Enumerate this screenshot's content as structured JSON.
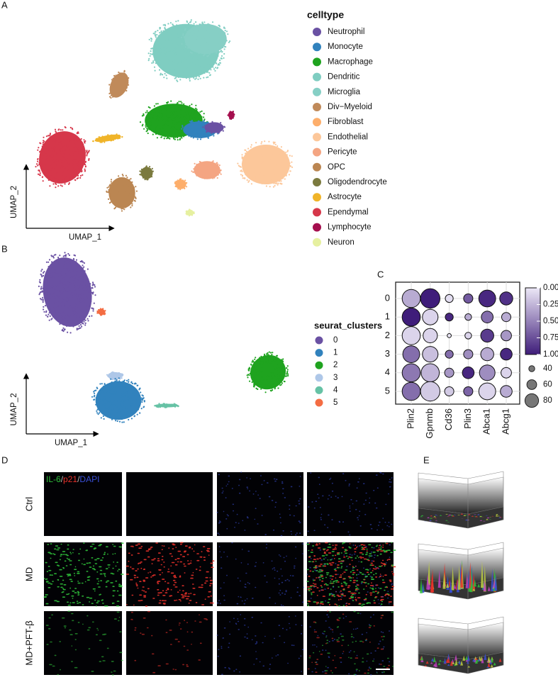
{
  "panel_labels": [
    "A",
    "B",
    "C",
    "D",
    "E"
  ],
  "umap_a": {
    "legend_title": "celltype",
    "x_label": "UMAP_1",
    "y_label": "UMAP_2",
    "cell_types": [
      {
        "name": "Neutrophil",
        "color": "#6a51a3"
      },
      {
        "name": "Monocyte",
        "color": "#3182bd"
      },
      {
        "name": "Macrophage",
        "color": "#1fa31f"
      },
      {
        "name": "Dendritic",
        "color": "#7fcdc1"
      },
      {
        "name": "Microglia",
        "color": "#86cfc5"
      },
      {
        "name": "Div−Myeloid",
        "color": "#c08a5a"
      },
      {
        "name": "Fibroblast",
        "color": "#fdae6b"
      },
      {
        "name": "Endothelial",
        "color": "#fcc79a"
      },
      {
        "name": "Pericyte",
        "color": "#f4a582"
      },
      {
        "name": "OPC",
        "color": "#bb8652"
      },
      {
        "name": "Oligodendrocyte",
        "color": "#7b7a3e"
      },
      {
        "name": "Astrocyte",
        "color": "#f0b429"
      },
      {
        "name": "Ependymal",
        "color": "#d6374a"
      },
      {
        "name": "Lymphocyte",
        "color": "#a50f4e"
      },
      {
        "name": "Neuron",
        "color": "#e6f0a0"
      }
    ]
  },
  "umap_b": {
    "legend_title": "seurat_clusters",
    "x_label": "UMAP_1",
    "y_label": "UMAP_2",
    "clusters": [
      {
        "name": "0",
        "color": "#6a51a3"
      },
      {
        "name": "1",
        "color": "#3182bd"
      },
      {
        "name": "2",
        "color": "#1fa31f"
      },
      {
        "name": "3",
        "color": "#aec7e8"
      },
      {
        "name": "4",
        "color": "#66c2a5"
      },
      {
        "name": "5",
        "color": "#f46d43"
      }
    ]
  },
  "chart_data": {
    "type": "dot",
    "categories": [
      "Plin2",
      "Gpnmb",
      "Cd36",
      "Plin3",
      "Abca1",
      "Abcg1"
    ],
    "series": [
      {
        "name": "0",
        "values": [
          0.3,
          1.0,
          0.05,
          0.7,
          0.95,
          0.9
        ],
        "sizes": [
          80,
          85,
          40,
          45,
          75,
          60
        ]
      },
      {
        "name": "1",
        "values": [
          1.0,
          0.1,
          0.95,
          0.3,
          0.6,
          0.3
        ],
        "sizes": [
          80,
          70,
          40,
          35,
          55,
          45
        ]
      },
      {
        "name": "2",
        "values": [
          0.1,
          0.1,
          0.0,
          0.1,
          0.85,
          0.4
        ],
        "sizes": [
          80,
          65,
          25,
          35,
          60,
          50
        ]
      },
      {
        "name": "3",
        "values": [
          0.6,
          0.2,
          0.6,
          0.45,
          0.3,
          0.95
        ],
        "sizes": [
          75,
          70,
          40,
          45,
          60,
          55
        ]
      },
      {
        "name": "4",
        "values": [
          0.55,
          0.25,
          0.4,
          0.95,
          0.45,
          0.1
        ],
        "sizes": [
          80,
          80,
          45,
          55,
          70,
          50
        ]
      },
      {
        "name": "5",
        "values": [
          0.6,
          0.15,
          0.15,
          0.65,
          0.1,
          0.3
        ],
        "sizes": [
          80,
          85,
          45,
          45,
          75,
          55
        ]
      }
    ],
    "clim": [
      0,
      1
    ],
    "color_low": "#ece8f7",
    "color_high": "#3f1d7a",
    "cticks": [
      {
        "value": 0,
        "label": "0.00"
      },
      {
        "value": 0.25,
        "label": "0.25"
      },
      {
        "value": 0.5,
        "label": "0.50"
      },
      {
        "value": 0.75,
        "label": "0.75"
      },
      {
        "value": 1,
        "label": "1.00"
      }
    ],
    "size_legend": [
      40,
      60,
      80
    ],
    "grid": true
  },
  "microscopy": {
    "stain_parts": [
      {
        "text": "IL-6",
        "color": "#2fbf3a"
      },
      {
        "text": "/",
        "color": "#bbbbbb"
      },
      {
        "text": "p21",
        "color": "#e8312a"
      },
      {
        "text": "/",
        "color": "#bbbbbb"
      },
      {
        "text": "DAPI",
        "color": "#3a4fd8"
      }
    ],
    "rows": [
      "Ctrl",
      "MD",
      "MD+PFT-β"
    ]
  }
}
